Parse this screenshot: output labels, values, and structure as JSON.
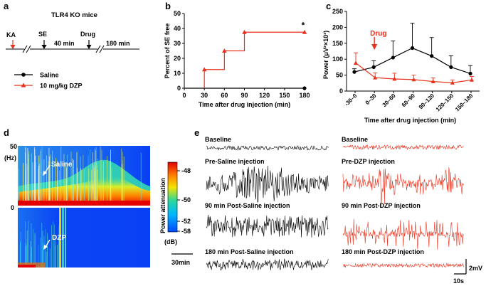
{
  "panels": {
    "a": {
      "letter": "a",
      "title": "TLR4 KO mice",
      "timeline": {
        "ka": "KA",
        "se": "SE",
        "drug": "Drug",
        "gap1": "40 min",
        "gap2": "180 min"
      },
      "legend": [
        {
          "label": "Saline",
          "color": "#000000",
          "marker": "circle"
        },
        {
          "label": "10 mg/kg DZP",
          "color": "#e8301c",
          "marker": "triangle"
        }
      ]
    },
    "b": {
      "letter": "b",
      "significance": "*"
    },
    "c": {
      "letter": "c",
      "drug_arrow_label": "Drug"
    },
    "d": {
      "letter": "d",
      "y_top": "50",
      "y_unit": "(Hz)",
      "y_zero": "0",
      "label_saline": "Saline",
      "label_dzp": "DZP",
      "colorbar": {
        "title": "Power attenuation",
        "ticks": [
          "-48",
          "-50",
          "-52",
          "-58"
        ],
        "unit": "(dB)",
        "colors": [
          "#e00000",
          "#ff7a00",
          "#f5e400",
          "#2bd89a",
          "#00b7ff",
          "#0048ff"
        ]
      },
      "scale_bar": "30min"
    },
    "e": {
      "letter": "e",
      "traces": [
        {
          "label": "Baseline",
          "color": "#000000"
        },
        {
          "label": "Pre-Saline injection",
          "color": "#000000"
        },
        {
          "label": "90 min Post-Saline injection",
          "color": "#000000"
        },
        {
          "label": "180 min Post-Saline injection",
          "color": "#000000"
        },
        {
          "label": "Baseline",
          "color": "#e8301c"
        },
        {
          "label": "Pre-DZP injection",
          "color": "#e8301c"
        },
        {
          "label": "90 min Post-DZP injection",
          "color": "#e8301c"
        },
        {
          "label": "180 min Post-DZP injection",
          "color": "#e8301c"
        }
      ],
      "scale_v": "2mV",
      "scale_t": "10s"
    }
  },
  "chart_data": [
    {
      "type": "line",
      "step": true,
      "title": "",
      "xlabel": "Time after drug injection (min)",
      "ylabel": "Percent of SE free",
      "xlim": [
        0,
        180
      ],
      "ylim": [
        0,
        50
      ],
      "xticks": [
        0,
        30,
        60,
        90,
        120,
        150,
        180
      ],
      "yticks": [
        0,
        10,
        20,
        30,
        40,
        50
      ],
      "series": [
        {
          "name": "Saline",
          "color": "#000000",
          "marker": "circle",
          "x": [
            0,
            180
          ],
          "y": [
            0,
            0
          ]
        },
        {
          "name": "10 mg/kg DZP",
          "color": "#e8301c",
          "marker": "triangle",
          "x": [
            30,
            60,
            90,
            180
          ],
          "y": [
            12.5,
            25,
            37.5,
            37.5
          ]
        }
      ]
    },
    {
      "type": "line",
      "title": "",
      "xlabel": "Time after drug injection (min)",
      "ylabel": "Power (μV²×10³)",
      "ylim": [
        0,
        250
      ],
      "yticks": [
        0,
        50,
        100,
        150,
        200,
        250
      ],
      "categories": [
        "-30–0",
        "0–30",
        "30–60",
        "60–90",
        "90–120",
        "120–150",
        "150–180"
      ],
      "series": [
        {
          "name": "Saline",
          "color": "#000000",
          "marker": "circle",
          "values": [
            60,
            75,
            105,
            135,
            110,
            75,
            55
          ],
          "errors": [
            10,
            20,
            52,
            78,
            58,
            36,
            25
          ]
        },
        {
          "name": "10 mg/kg DZP",
          "color": "#e8301c",
          "marker": "triangle",
          "values": [
            88,
            42,
            38,
            36,
            30,
            26,
            35
          ],
          "errors": [
            32,
            15,
            18,
            14,
            11,
            9,
            11
          ]
        }
      ]
    }
  ]
}
